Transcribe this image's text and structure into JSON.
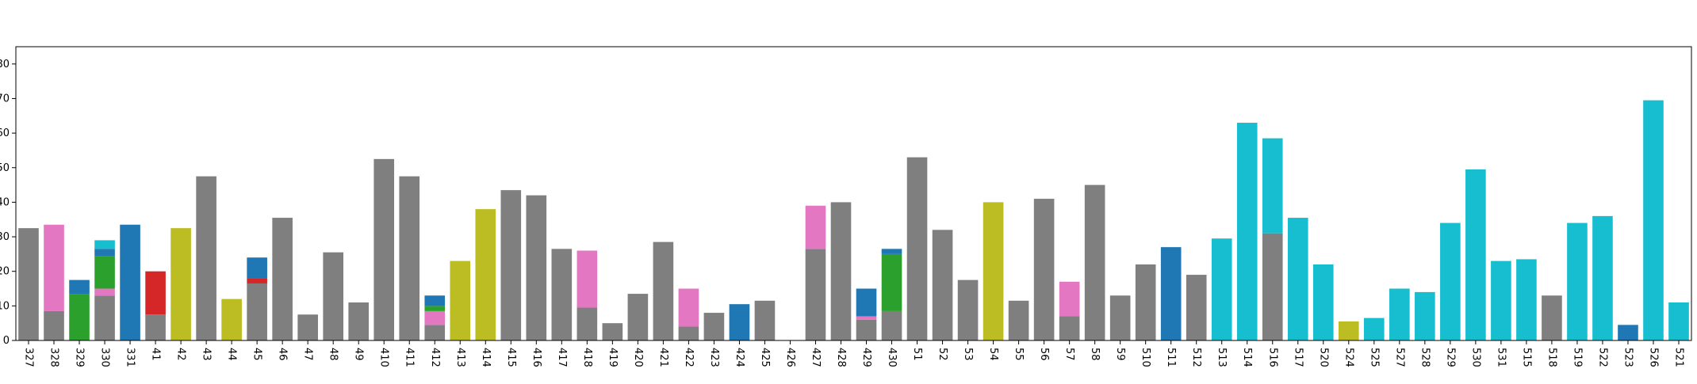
{
  "chart_data": {
    "type": "bar",
    "stacked": true,
    "categories": [
      "327",
      "328",
      "329",
      "330",
      "331",
      "41",
      "42",
      "43",
      "44",
      "45",
      "46",
      "47",
      "48",
      "49",
      "410",
      "411",
      "412",
      "413",
      "414",
      "415",
      "416",
      "417",
      "418",
      "419",
      "420",
      "421",
      "422",
      "423",
      "424",
      "425",
      "426",
      "427",
      "428",
      "429",
      "430",
      "51",
      "52",
      "53",
      "54",
      "55",
      "56",
      "57",
      "58",
      "59",
      "510",
      "511",
      "512",
      "513",
      "514",
      "516",
      "517",
      "520",
      "524",
      "525",
      "527",
      "528",
      "529",
      "530",
      "531",
      "515",
      "518",
      "519",
      "522",
      "523",
      "526",
      "521"
    ],
    "ylim": [
      0,
      85
    ],
    "grid": false,
    "ytick_labels": [
      "0",
      "10",
      "20",
      "30",
      "40",
      "50",
      "60",
      "70",
      "80"
    ],
    "series": [
      {
        "color": "#7f7f7f",
        "values": [
          32.5,
          8.5,
          0,
          13,
          0,
          7.5,
          0,
          47.5,
          0,
          16.5,
          35.5,
          7.5,
          25.5,
          11,
          52.5,
          47.5,
          4.5,
          0,
          0,
          43.5,
          42,
          26.5,
          9.5,
          5,
          13.5,
          28.5,
          4,
          8,
          0,
          11.5,
          0,
          26.5,
          40,
          6,
          8.5,
          53,
          32,
          17.5,
          0,
          11.5,
          41,
          7,
          45,
          13,
          22,
          0,
          19,
          0,
          0,
          31,
          0,
          0,
          0,
          0,
          0,
          0,
          0,
          0,
          0,
          0,
          13,
          0,
          0,
          0,
          0,
          0
        ]
      },
      {
        "color": "#e377c2",
        "values": [
          0,
          25,
          0,
          2,
          0,
          0,
          0,
          0,
          0,
          0,
          0,
          0,
          0,
          0,
          0,
          0,
          4,
          0,
          0,
          0,
          0,
          0,
          16.5,
          0,
          0,
          0,
          11,
          0,
          0,
          0,
          0,
          12.5,
          0,
          1,
          0,
          0,
          0,
          0,
          0,
          0,
          0,
          10,
          0,
          0,
          0,
          0,
          0,
          0,
          0,
          0,
          0,
          0,
          0,
          0,
          0,
          0,
          0,
          0,
          0,
          0,
          0,
          0,
          0,
          0,
          0,
          0
        ]
      },
      {
        "color": "#2ca02c",
        "values": [
          0,
          0,
          13.5,
          9.5,
          0,
          0,
          0,
          0,
          0,
          0,
          0,
          0,
          0,
          0,
          0,
          0,
          1.5,
          0,
          0,
          0,
          0,
          0,
          0,
          0,
          0,
          0,
          0,
          0,
          0,
          0,
          0,
          0,
          0,
          0,
          16.5,
          0,
          0,
          0,
          0,
          0,
          0,
          0,
          0,
          0,
          0,
          0,
          0,
          0,
          0,
          0,
          0,
          0,
          0,
          0,
          0,
          0,
          0,
          0,
          0,
          0,
          0,
          0,
          0,
          0,
          0,
          0
        ]
      },
      {
        "color": "#d62728",
        "values": [
          0,
          0,
          0,
          0,
          0,
          12.5,
          0,
          0,
          0,
          1.5,
          0,
          0,
          0,
          0,
          0,
          0,
          0,
          0,
          0,
          0,
          0,
          0,
          0,
          0,
          0,
          0,
          0,
          0,
          0,
          0,
          0,
          0,
          0,
          0,
          0,
          0,
          0,
          0,
          0,
          0,
          0,
          0,
          0,
          0,
          0,
          0,
          0,
          0,
          0,
          0,
          0,
          0,
          0,
          0,
          0,
          0,
          0,
          0,
          0,
          0,
          0,
          0,
          0,
          0,
          0,
          0
        ]
      },
      {
        "color": "#bcbd22",
        "values": [
          0,
          0,
          0,
          0,
          0,
          0,
          32.5,
          0,
          12,
          0,
          0,
          0,
          0,
          0,
          0,
          0,
          0,
          23,
          38,
          0,
          0,
          0,
          0,
          0,
          0,
          0,
          0,
          0,
          0,
          0,
          0,
          0,
          0,
          0,
          0,
          0,
          0,
          0,
          40,
          0,
          0,
          0,
          0,
          0,
          0,
          0,
          0,
          0,
          0,
          0,
          0,
          0,
          5.5,
          0,
          0,
          0,
          0,
          0,
          0,
          0,
          0,
          0,
          0,
          0,
          0,
          0
        ]
      },
      {
        "color": "#1f77b4",
        "values": [
          0,
          0,
          4,
          2,
          33.5,
          0,
          0,
          0,
          0,
          6,
          0,
          0,
          0,
          0,
          0,
          0,
          3,
          0,
          0,
          0,
          0,
          0,
          0,
          0,
          0,
          0,
          0,
          0,
          10.5,
          0,
          0,
          0,
          0,
          8,
          1.5,
          0,
          0,
          0,
          0,
          0,
          0,
          0,
          0,
          0,
          0,
          27,
          0,
          0,
          0,
          0,
          0,
          0,
          0,
          0,
          0,
          0,
          0,
          0,
          0,
          0,
          0,
          0,
          0,
          4.5,
          0,
          0
        ]
      },
      {
        "color": "#17becf",
        "values": [
          0,
          0,
          0,
          2.5,
          0,
          0,
          0,
          0,
          0,
          0,
          0,
          0,
          0,
          0,
          0,
          0,
          0,
          0,
          0,
          0,
          0,
          0,
          0,
          0,
          0,
          0,
          0,
          0,
          0,
          0,
          0,
          0,
          0,
          0,
          0,
          0,
          0,
          0,
          0,
          0,
          0,
          0,
          0,
          0,
          0,
          0,
          0,
          29.5,
          63,
          27.5,
          35.5,
          22,
          0,
          6.5,
          15,
          14,
          34,
          49.5,
          23,
          23.5,
          0,
          34,
          36,
          0,
          69.5,
          11
        ]
      }
    ]
  }
}
